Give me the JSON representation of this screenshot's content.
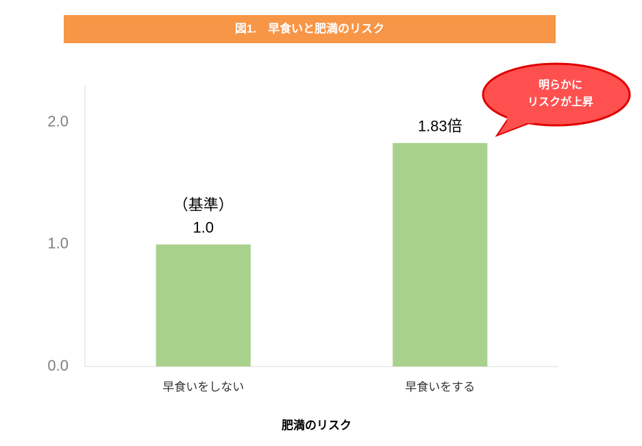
{
  "chart_data": {
    "type": "bar",
    "title": "図1.　早食いと肥満のリスク",
    "x_label": "肥満のリスク",
    "categories": [
      "早食いをしない",
      "早食いをする"
    ],
    "values": [
      1.0,
      1.83
    ],
    "value_labels": [
      "1.0",
      "1.83倍"
    ],
    "color": "#a9d18e",
    "ylim": [
      0,
      2.3
    ],
    "yticks": [
      {
        "value": 0,
        "label": "0.0"
      },
      {
        "value": 1,
        "label": "1.0"
      },
      {
        "value": 2,
        "label": "2.0"
      }
    ],
    "grid": false,
    "annotations": {
      "baseline_note": "（基準）",
      "callout": [
        "明らかに",
        "リスクが上昇"
      ]
    }
  }
}
